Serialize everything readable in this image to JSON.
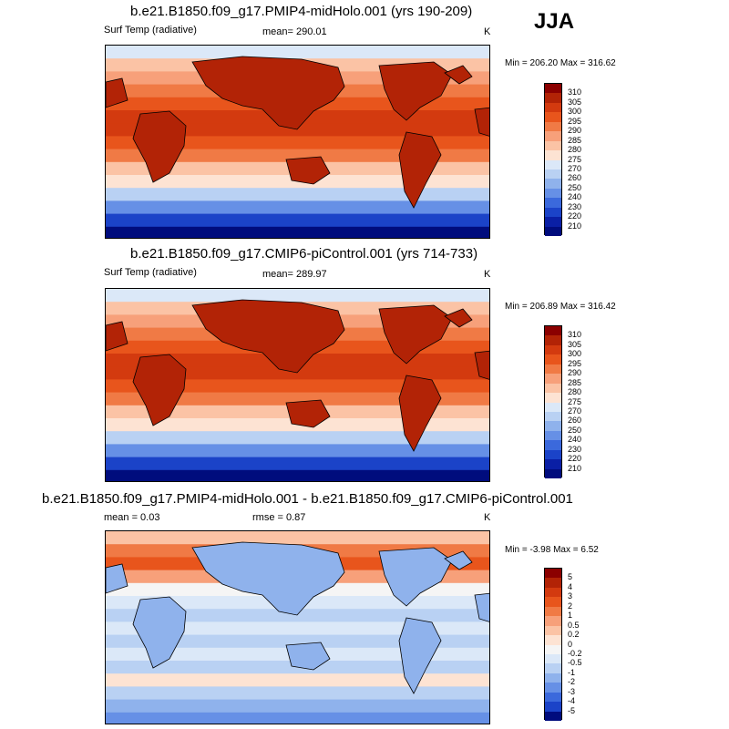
{
  "season": "JJA",
  "panels": [
    {
      "title": "b.e21.B1850.f09_g17.PMIP4-midHolo.001 (yrs 190-209)",
      "left_label": "Surf Temp (radiative)",
      "center_label": "mean= 290.01",
      "units": "K",
      "minmax": "Min = 206.20 Max = 316.62",
      "levels": [
        "310",
        "305",
        "300",
        "295",
        "290",
        "285",
        "280",
        "275",
        "270",
        "260",
        "250",
        "240",
        "230",
        "220",
        "210"
      ],
      "colors": [
        "#8b0000",
        "#b22306",
        "#d33a0f",
        "#e8551c",
        "#f07a45",
        "#f7a07a",
        "#fbc3a5",
        "#fde3d3",
        "#dbe8f8",
        "#b9d1f3",
        "#8fb2ec",
        "#6690e6",
        "#3b69dc",
        "#1b43c8",
        "#0a1fa5",
        "#000c7d"
      ]
    },
    {
      "title": "b.e21.B1850.f09_g17.CMIP6-piControl.001 (yrs 714-733)",
      "left_label": "Surf Temp (radiative)",
      "center_label": "mean= 289.97",
      "units": "K",
      "minmax": "Min = 206.89 Max = 316.42",
      "levels": [
        "310",
        "305",
        "300",
        "295",
        "290",
        "285",
        "280",
        "275",
        "270",
        "260",
        "250",
        "240",
        "230",
        "220",
        "210"
      ],
      "colors": [
        "#8b0000",
        "#b22306",
        "#d33a0f",
        "#e8551c",
        "#f07a45",
        "#f7a07a",
        "#fbc3a5",
        "#fde3d3",
        "#dbe8f8",
        "#b9d1f3",
        "#8fb2ec",
        "#6690e6",
        "#3b69dc",
        "#1b43c8",
        "#0a1fa5",
        "#000c7d"
      ]
    },
    {
      "title": "b.e21.B1850.f09_g17.PMIP4-midHolo.001 - b.e21.B1850.f09_g17.CMIP6-piControl.001",
      "left_label": "mean =   0.03",
      "center_label": "rmse =   0.87",
      "units": "K",
      "minmax": "Min =  -3.98 Max =   6.52",
      "levels": [
        "5",
        "4",
        "3",
        "2",
        "1",
        "0.5",
        "0.2",
        "0",
        "-0.2",
        "-0.5",
        "-1",
        "-2",
        "-3",
        "-4",
        "-5"
      ],
      "colors": [
        "#8b0000",
        "#b22306",
        "#d33a0f",
        "#e8551c",
        "#f07a45",
        "#f7a07a",
        "#fbc3a5",
        "#fde3d3",
        "#f5f5f5",
        "#dbe8f8",
        "#b9d1f3",
        "#8fb2ec",
        "#6690e6",
        "#3b69dc",
        "#1b43c8",
        "#000c7d"
      ]
    }
  ]
}
